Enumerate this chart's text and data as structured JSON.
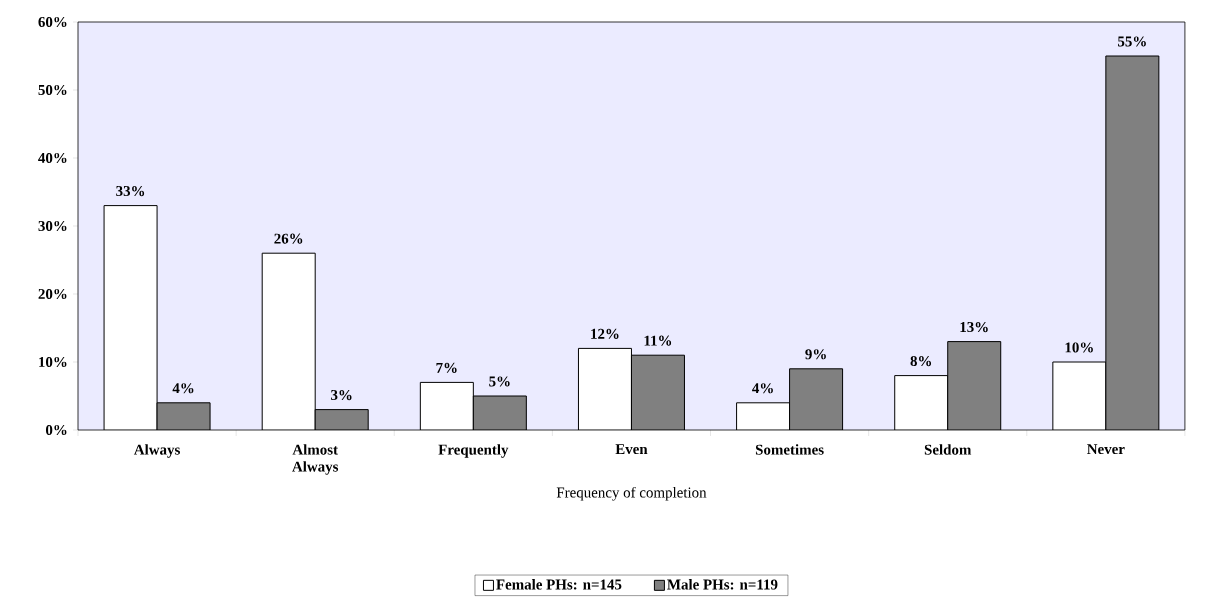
{
  "chart_data": {
    "type": "bar",
    "xlabel": "Frequency of completion",
    "categories": [
      "Always",
      "Almost Always",
      "Frequently",
      "Even",
      "Sometimes",
      "Seldom",
      "Never"
    ],
    "series": [
      {
        "name": "Female PHs: n=145",
        "color": "#ffffff",
        "values": [
          33,
          26,
          7,
          12,
          4,
          8,
          10
        ],
        "value_labels": [
          "33%",
          "26%",
          "7%",
          "12%",
          "4%",
          "8%",
          "10%"
        ]
      },
      {
        "name": "Male PHs: n=119",
        "color": "#808080",
        "values": [
          4,
          3,
          5,
          11,
          9,
          13,
          55
        ],
        "value_labels": [
          "4%",
          "3%",
          "5%",
          "11%",
          "9%",
          "13%",
          "55%"
        ]
      }
    ],
    "ylim": [
      0,
      60
    ],
    "yticks": [
      {
        "value": 0,
        "label": "0%"
      },
      {
        "value": 10,
        "label": "10%"
      },
      {
        "value": 20,
        "label": "20%"
      },
      {
        "value": 30,
        "label": "30%"
      },
      {
        "value": 40,
        "label": "40%"
      },
      {
        "value": 50,
        "label": "50%"
      },
      {
        "value": 60,
        "label": "60%"
      }
    ],
    "legend": "bottom"
  }
}
